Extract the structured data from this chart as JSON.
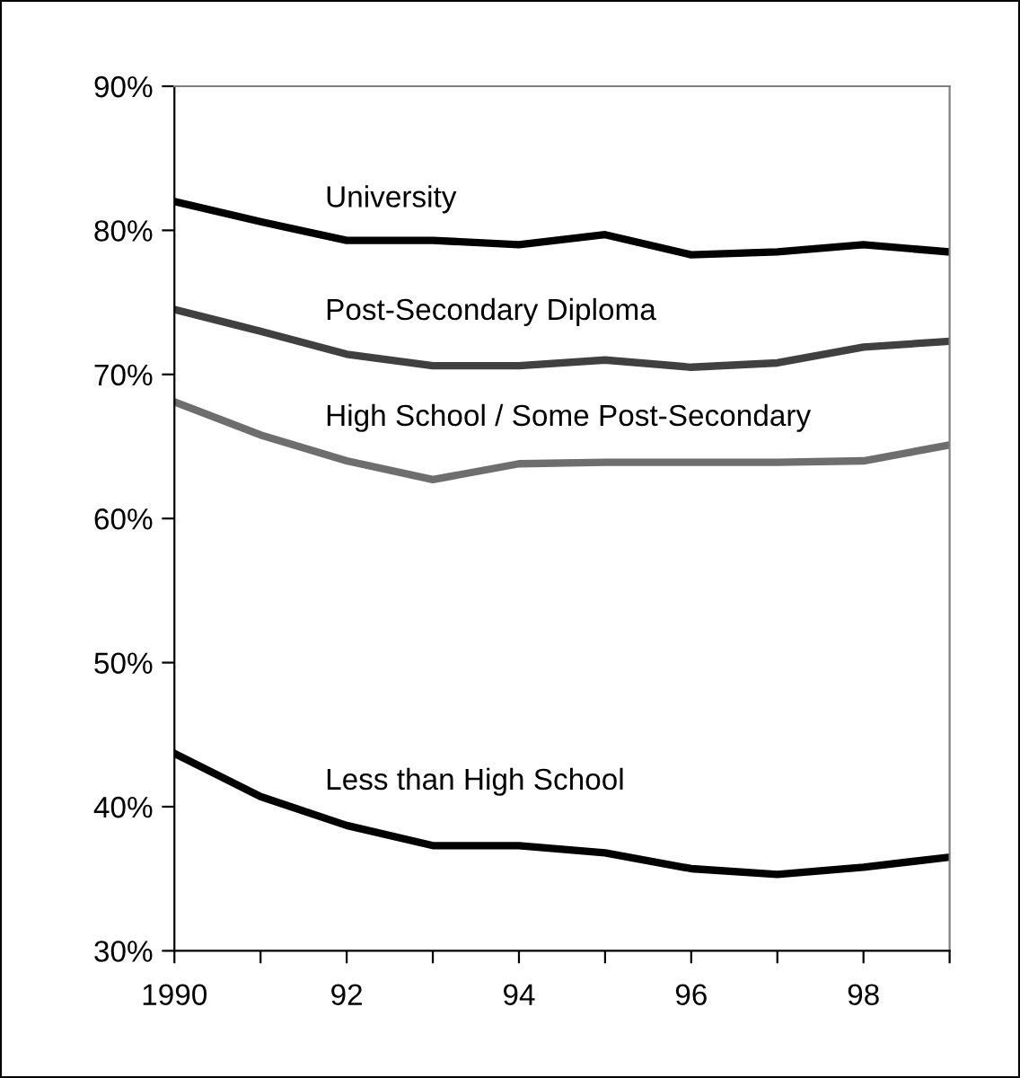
{
  "chart_data": {
    "type": "line",
    "x": [
      1990,
      1991,
      1992,
      1993,
      1994,
      1995,
      1996,
      1997,
      1998,
      1999
    ],
    "series": [
      {
        "name": "University",
        "color": "#000000",
        "values": [
          82.0,
          80.6,
          79.3,
          79.3,
          79.0,
          79.7,
          78.3,
          78.5,
          79.0,
          78.5
        ]
      },
      {
        "name": "Post-Secondary Diploma",
        "color": "#404040",
        "values": [
          74.5,
          73.0,
          71.4,
          70.6,
          70.6,
          71.0,
          70.5,
          70.8,
          71.9,
          72.3
        ]
      },
      {
        "name": "High School / Some Post-Secondary",
        "color": "#6e6e6e",
        "values": [
          68.1,
          65.8,
          64.0,
          62.7,
          63.8,
          63.9,
          63.9,
          63.9,
          64.0,
          65.1
        ]
      },
      {
        "name": "Less than High School",
        "color": "#000000",
        "values": [
          43.7,
          40.7,
          38.7,
          37.3,
          37.3,
          36.8,
          35.7,
          35.3,
          35.8,
          36.5
        ]
      }
    ],
    "xlim": [
      1990,
      1999
    ],
    "xticks": [
      1990,
      {
        "value": 1991,
        "label": null
      },
      {
        "value": 1992,
        "label": "92"
      },
      {
        "value": 1993,
        "label": null
      },
      {
        "value": 1994,
        "label": "94"
      },
      {
        "value": 1995,
        "label": null
      },
      {
        "value": 1996,
        "label": "96"
      },
      {
        "value": 1997,
        "label": null
      },
      {
        "value": 1998,
        "label": "98"
      },
      {
        "value": 1999,
        "label": null
      }
    ],
    "ylim": [
      30,
      90
    ],
    "yticks": [
      {
        "value": 30,
        "label": "30%"
      },
      {
        "value": 40,
        "label": "40%"
      },
      {
        "value": 50,
        "label": "50%"
      },
      {
        "value": 60,
        "label": "60%"
      },
      {
        "value": 70,
        "label": "70%"
      },
      {
        "value": 80,
        "label": "80%"
      },
      {
        "value": 90,
        "label": "90%"
      }
    ],
    "grid": false,
    "legend": false,
    "marker": "none",
    "line_style": "solid"
  }
}
